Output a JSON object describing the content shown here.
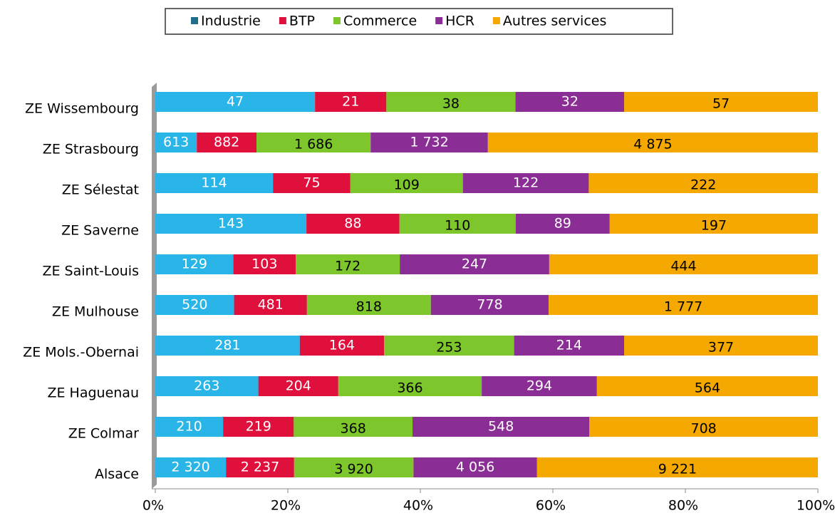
{
  "chart_data": {
    "type": "bar",
    "orientation": "horizontal",
    "stacking": "percent",
    "categories": [
      "ZE Wissembourg",
      "ZE Strasbourg",
      "ZE Sélestat",
      "ZE Saverne",
      "ZE Saint-Louis",
      "ZE Mulhouse",
      "ZE Mols.-Obernai",
      "ZE Haguenau",
      "ZE Colmar",
      "Alsace"
    ],
    "series": [
      {
        "name": "Industrie",
        "color": "#29b5e8",
        "label_color": "#ffffff",
        "values": [
          47,
          613,
          114,
          143,
          129,
          520,
          281,
          263,
          210,
          2320
        ],
        "value_labels": [
          "47",
          "613",
          "114",
          "143",
          "129",
          "520",
          "281",
          "263",
          "210",
          "2 320"
        ]
      },
      {
        "name": "BTP",
        "color": "#e0103c",
        "label_color": "#ffffff",
        "values": [
          21,
          882,
          75,
          88,
          103,
          481,
          164,
          204,
          219,
          2237
        ],
        "value_labels": [
          "21",
          "882",
          "75",
          "88",
          "103",
          "481",
          "164",
          "204",
          "219",
          "2 237"
        ]
      },
      {
        "name": "Commerce",
        "color": "#7dc62b",
        "label_color": "#000000",
        "values": [
          38,
          1686,
          109,
          110,
          172,
          818,
          253,
          366,
          368,
          3920
        ],
        "value_labels": [
          "38",
          "1 686",
          "109",
          "110",
          "172",
          "818",
          "253",
          "366",
          "368",
          "3 920"
        ]
      },
      {
        "name": "HCR",
        "color": "#8a2e95",
        "label_color": "#ffffff",
        "values": [
          32,
          1732,
          122,
          89,
          247,
          778,
          214,
          294,
          548,
          4056
        ],
        "value_labels": [
          "32",
          "1 732",
          "122",
          "89",
          "247",
          "778",
          "214",
          "294",
          "548",
          "4 056"
        ]
      },
      {
        "name": "Autres services",
        "color": "#f5a800",
        "label_color": "#000000",
        "values": [
          57,
          4875,
          222,
          197,
          444,
          1777,
          377,
          564,
          708,
          9221
        ],
        "value_labels": [
          "57",
          "4 875",
          "222",
          "197",
          "444",
          "1 777",
          "377",
          "564",
          "708",
          "9 221"
        ]
      }
    ],
    "xlim": [
      0,
      100
    ],
    "xticks": [
      {
        "value": 0,
        "label": "0%"
      },
      {
        "value": 20,
        "label": "20%"
      },
      {
        "value": 40,
        "label": "40%"
      },
      {
        "value": 60,
        "label": "60%"
      },
      {
        "value": 80,
        "label": "80%"
      },
      {
        "value": 100,
        "label": "100%"
      }
    ],
    "legend": "top"
  }
}
